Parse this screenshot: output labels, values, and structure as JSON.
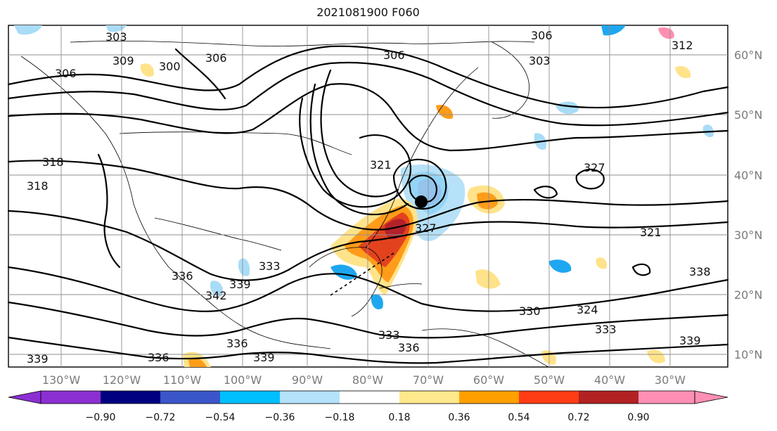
{
  "title": "2021081900 F060",
  "map": {
    "lon_ticks": [
      "130°W",
      "120°W",
      "110°W",
      "100°W",
      "90°W",
      "80°W",
      "70°W",
      "60°W",
      "50°W",
      "40°W",
      "30°W"
    ],
    "lat_ticks": [
      "60°N",
      "50°N",
      "40°N",
      "30°N",
      "20°N",
      "10°N"
    ],
    "contour_labels": [
      "303",
      "309",
      "300",
      "306",
      "306",
      "306",
      "303",
      "306",
      "312",
      "318",
      "318",
      "327",
      "321",
      "327",
      "321",
      "336",
      "342",
      "339",
      "333",
      "333",
      "330",
      "324",
      "333",
      "336",
      "336",
      "339",
      "339",
      "336",
      "339",
      "338"
    ],
    "colors": {
      "neg_strong": "#1f3fb5",
      "neg_mid": "#1ea7f0",
      "neg_weak": "#a9dcf7",
      "pos_weak": "#ffe38a",
      "pos_mid": "#ff9c1a",
      "pos_strong": "#e3421e",
      "pos_dark": "#b3222a",
      "pos_pink": "#ff8fb0"
    }
  },
  "colorbar": {
    "labels": [
      "−0.90",
      "−0.72",
      "−0.54",
      "−0.36",
      "−0.18",
      "0.18",
      "0.36",
      "0.54",
      "0.72",
      "0.90"
    ],
    "colors": [
      "#8c2fd2",
      "#000080",
      "#3a56c9",
      "#00bfff",
      "#b3e2fa",
      "#ffffff",
      "#ffe98c",
      "#ffa000",
      "#ff3c14",
      "#b22222",
      "#ff8fb4"
    ]
  }
}
